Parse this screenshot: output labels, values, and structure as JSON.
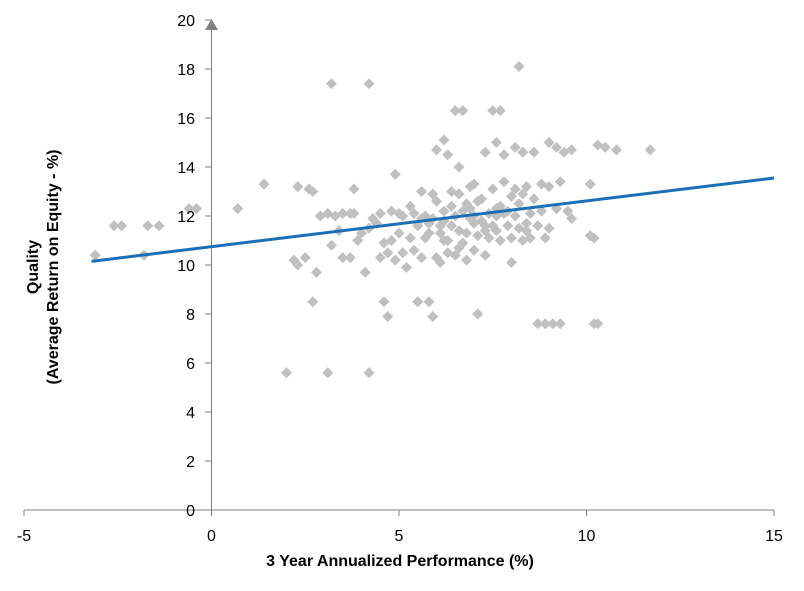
{
  "chart_data": {
    "type": "scatter",
    "xlabel": "3 Year Annualized Performance (%)",
    "ylabel_line1": "Quality",
    "ylabel_line2": "(Average Return on Equity - %)",
    "xlim": [
      -5,
      15
    ],
    "ylim": [
      0,
      20
    ],
    "x_ticks": [
      "-5",
      "0",
      "5",
      "10",
      "15"
    ],
    "y_ticks": [
      "0",
      "2",
      "4",
      "6",
      "8",
      "10",
      "12",
      "14",
      "16",
      "18",
      "20"
    ],
    "grid": false,
    "legend": "none",
    "point_color": "#c0c0c0",
    "trend_color": "#1a70b8",
    "trendline": {
      "x": [
        -3.2,
        15
      ],
      "y": [
        10.15,
        13.55
      ]
    },
    "points": [
      [
        -3.1,
        10.4
      ],
      [
        -2.6,
        11.6
      ],
      [
        -2.4,
        11.6
      ],
      [
        -1.8,
        10.4
      ],
      [
        -1.7,
        11.6
      ],
      [
        -1.4,
        11.6
      ],
      [
        -0.6,
        12.3
      ],
      [
        -0.4,
        12.3
      ],
      [
        0.7,
        12.3
      ],
      [
        1.4,
        13.3
      ],
      [
        2.0,
        5.6
      ],
      [
        2.2,
        10.2
      ],
      [
        2.3,
        10.0
      ],
      [
        2.3,
        13.2
      ],
      [
        2.5,
        10.3
      ],
      [
        2.6,
        13.1
      ],
      [
        2.7,
        13.0
      ],
      [
        2.7,
        8.5
      ],
      [
        2.8,
        9.7
      ],
      [
        2.9,
        12.0
      ],
      [
        3.1,
        12.1
      ],
      [
        3.2,
        10.8
      ],
      [
        3.3,
        12.0
      ],
      [
        3.4,
        11.4
      ],
      [
        3.5,
        12.1
      ],
      [
        3.5,
        10.3
      ],
      [
        3.7,
        12.1
      ],
      [
        3.7,
        10.3
      ],
      [
        3.8,
        13.1
      ],
      [
        3.8,
        12.1
      ],
      [
        3.9,
        11.0
      ],
      [
        4.0,
        11.3
      ],
      [
        4.1,
        9.7
      ],
      [
        4.2,
        11.5
      ],
      [
        4.3,
        11.9
      ],
      [
        4.4,
        11.7
      ],
      [
        4.5,
        12.1
      ],
      [
        4.5,
        10.3
      ],
      [
        4.6,
        10.9
      ],
      [
        4.6,
        8.5
      ],
      [
        4.7,
        10.5
      ],
      [
        4.7,
        7.9
      ],
      [
        4.8,
        11.0
      ],
      [
        4.8,
        12.2
      ],
      [
        4.9,
        10.2
      ],
      [
        4.9,
        13.7
      ],
      [
        5.0,
        11.3
      ],
      [
        5.0,
        12.1
      ],
      [
        5.1,
        10.5
      ],
      [
        5.1,
        12.0
      ],
      [
        5.2,
        9.9
      ],
      [
        5.3,
        12.4
      ],
      [
        5.3,
        11.1
      ],
      [
        5.4,
        10.6
      ],
      [
        5.4,
        12.1
      ],
      [
        5.5,
        11.6
      ],
      [
        5.5,
        8.5
      ],
      [
        5.6,
        10.3
      ],
      [
        5.6,
        13.0
      ],
      [
        5.7,
        11.1
      ],
      [
        5.7,
        12.0
      ],
      [
        5.8,
        8.5
      ],
      [
        5.8,
        11.3
      ],
      [
        5.9,
        11.9
      ],
      [
        5.9,
        12.9
      ],
      [
        5.9,
        7.9
      ],
      [
        6.0,
        10.3
      ],
      [
        6.0,
        12.6
      ],
      [
        6.0,
        14.7
      ],
      [
        6.1,
        11.3
      ],
      [
        6.1,
        10.1
      ],
      [
        6.2,
        12.2
      ],
      [
        6.2,
        11.8
      ],
      [
        6.2,
        15.1
      ],
      [
        6.3,
        14.5
      ],
      [
        6.3,
        10.5
      ],
      [
        6.3,
        11.0
      ],
      [
        6.4,
        13.0
      ],
      [
        6.4,
        11.6
      ],
      [
        6.5,
        10.4
      ],
      [
        6.5,
        12.0
      ],
      [
        6.5,
        16.3
      ],
      [
        6.6,
        14.0
      ],
      [
        6.6,
        11.4
      ],
      [
        6.6,
        12.9
      ],
      [
        6.7,
        10.9
      ],
      [
        6.7,
        12.2
      ],
      [
        6.7,
        16.3
      ],
      [
        6.8,
        11.3
      ],
      [
        6.8,
        10.2
      ],
      [
        6.9,
        11.9
      ],
      [
        6.9,
        13.2
      ],
      [
        6.9,
        12.3
      ],
      [
        7.0,
        10.6
      ],
      [
        7.0,
        11.7
      ],
      [
        7.0,
        13.3
      ],
      [
        7.1,
        12.6
      ],
      [
        7.1,
        11.2
      ],
      [
        7.1,
        8.0
      ],
      [
        7.2,
        11.8
      ],
      [
        7.2,
        12.7
      ],
      [
        7.3,
        11.4
      ],
      [
        7.3,
        10.4
      ],
      [
        7.3,
        14.6
      ],
      [
        7.4,
        12.1
      ],
      [
        7.4,
        11.1
      ],
      [
        7.5,
        11.6
      ],
      [
        7.5,
        13.1
      ],
      [
        7.5,
        16.3
      ],
      [
        7.6,
        11.4
      ],
      [
        7.6,
        12.3
      ],
      [
        7.6,
        15.0
      ],
      [
        7.7,
        11.0
      ],
      [
        7.7,
        12.4
      ],
      [
        7.7,
        16.3
      ],
      [
        7.8,
        12.1
      ],
      [
        7.8,
        13.4
      ],
      [
        7.8,
        14.5
      ],
      [
        7.9,
        11.6
      ],
      [
        7.9,
        12.2
      ],
      [
        8.0,
        12.8
      ],
      [
        8.0,
        10.1
      ],
      [
        8.0,
        11.1
      ],
      [
        8.1,
        13.1
      ],
      [
        8.1,
        12.0
      ],
      [
        8.1,
        14.8
      ],
      [
        8.2,
        11.5
      ],
      [
        8.2,
        12.5
      ],
      [
        8.2,
        18.1
      ],
      [
        8.3,
        11.0
      ],
      [
        8.3,
        12.9
      ],
      [
        8.3,
        14.6
      ],
      [
        8.4,
        11.4
      ],
      [
        8.4,
        13.2
      ],
      [
        8.5,
        12.1
      ],
      [
        8.5,
        11.1
      ],
      [
        8.6,
        14.6
      ],
      [
        8.6,
        12.7
      ],
      [
        8.7,
        11.6
      ],
      [
        8.7,
        7.6
      ],
      [
        8.8,
        12.2
      ],
      [
        8.8,
        13.3
      ],
      [
        8.9,
        11.1
      ],
      [
        8.9,
        7.6
      ],
      [
        9.0,
        11.5
      ],
      [
        9.0,
        15.0
      ],
      [
        9.0,
        13.2
      ],
      [
        9.1,
        7.6
      ],
      [
        9.2,
        12.3
      ],
      [
        9.2,
        14.8
      ],
      [
        9.3,
        7.6
      ],
      [
        9.3,
        13.4
      ],
      [
        9.4,
        14.6
      ],
      [
        9.5,
        12.2
      ],
      [
        9.6,
        14.7
      ],
      [
        9.6,
        11.9
      ],
      [
        10.1,
        13.3
      ],
      [
        10.1,
        11.2
      ],
      [
        10.2,
        7.6
      ],
      [
        10.2,
        11.1
      ],
      [
        10.3,
        7.6
      ],
      [
        10.3,
        14.9
      ],
      [
        10.5,
        14.8
      ],
      [
        10.8,
        14.7
      ],
      [
        11.7,
        14.7
      ],
      [
        3.2,
        17.4
      ],
      [
        4.2,
        17.4
      ],
      [
        3.1,
        5.6
      ],
      [
        4.2,
        5.6
      ],
      [
        6.2,
        11.0
      ],
      [
        6.6,
        10.7
      ],
      [
        7.0,
        12.0
      ],
      [
        5.8,
        11.7
      ],
      [
        6.4,
        12.4
      ],
      [
        7.3,
        11.6
      ],
      [
        5.6,
        11.9
      ],
      [
        6.8,
        12.5
      ],
      [
        7.6,
        12.0
      ],
      [
        8.4,
        11.7
      ],
      [
        6.1,
        11.6
      ]
    ]
  }
}
